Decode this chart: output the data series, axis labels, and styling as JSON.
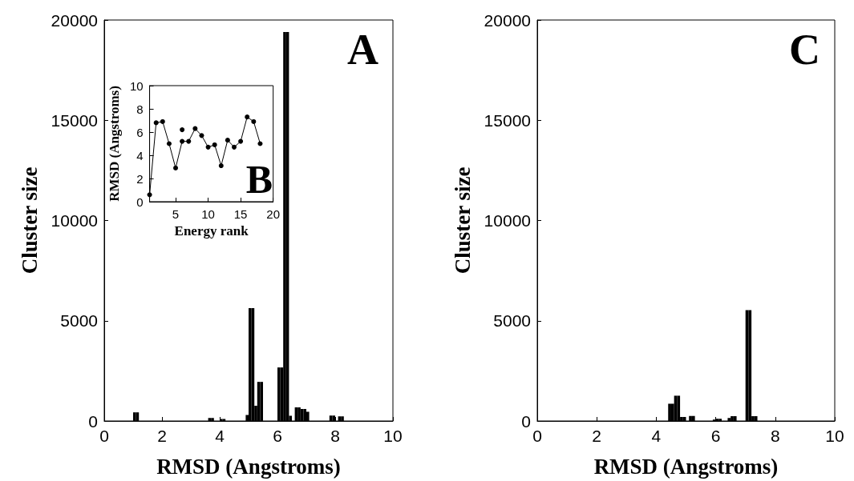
{
  "chart_data": [
    {
      "type": "bar",
      "xlabel": "RMSD (Angstroms)",
      "ylabel": "Cluster size",
      "annotations": [
        "A"
      ],
      "color": "#000000",
      "x": [
        1.05,
        1.15,
        3.65,
        3.75,
        4.05,
        4.15,
        4.95,
        5.05,
        5.15,
        5.25,
        5.35,
        5.45,
        6.05,
        6.15,
        6.25,
        6.35,
        6.45,
        6.65,
        6.75,
        6.85,
        6.95,
        7.05,
        7.85,
        7.95,
        8.15,
        8.25
      ],
      "values": [
        430,
        430,
        150,
        150,
        100,
        100,
        300,
        5630,
        5630,
        760,
        1950,
        1950,
        2670,
        2670,
        19400,
        19400,
        260,
        680,
        680,
        600,
        600,
        460,
        270,
        270,
        230,
        230
      ],
      "xlim": [
        0,
        10
      ],
      "xticks": [
        0,
        2,
        4,
        6,
        8,
        10
      ],
      "ylim": [
        0,
        20000
      ],
      "yticks": [
        0,
        5000,
        10000,
        15000,
        20000
      ],
      "grid": false
    },
    {
      "type": "line",
      "xlabel": "Energy rank",
      "ylabel": "RMSD (Angstroms)",
      "annotations": [
        "B"
      ],
      "marker": "circle",
      "line_style": "solid",
      "series": [
        {
          "color": "#000000",
          "x": [
            1,
            2,
            3,
            4,
            5,
            6,
            7,
            8,
            9,
            10,
            11,
            12,
            13,
            14,
            15,
            16,
            17,
            18
          ],
          "values": [
            0.6,
            6.8,
            6.9,
            5.0,
            2.9,
            5.2,
            5.2,
            6.3,
            5.7,
            4.7,
            4.9,
            3.1,
            5.3,
            4.7,
            5.2,
            7.3,
            6.9,
            5.0
          ]
        },
        {
          "color": "#000000",
          "x": [
            6
          ],
          "values": [
            6.2
          ]
        }
      ],
      "xlim": [
        1,
        20
      ],
      "xticks": [
        5,
        10,
        15,
        20
      ],
      "ylim": [
        0,
        10
      ],
      "yticks": [
        0,
        2,
        4,
        6,
        8,
        10
      ],
      "grid": false
    },
    {
      "type": "bar",
      "xlabel": "RMSD (Angstroms)",
      "ylabel": "Cluster size",
      "annotations": [
        "C"
      ],
      "color": "#000000",
      "x": [
        4.45,
        4.55,
        4.65,
        4.75,
        4.85,
        4.95,
        5.15,
        5.25,
        5.95,
        6.05,
        6.15,
        6.45,
        6.55,
        6.65,
        7.05,
        7.15,
        7.25,
        7.35
      ],
      "values": [
        860,
        860,
        1260,
        1260,
        200,
        200,
        250,
        250,
        70,
        110,
        110,
        150,
        240,
        240,
        5530,
        5530,
        240,
        240
      ],
      "xlim": [
        0,
        10
      ],
      "xticks": [
        0,
        2,
        4,
        6,
        8,
        10
      ],
      "ylim": [
        0,
        20000
      ],
      "yticks": [
        0,
        5000,
        10000,
        15000,
        20000
      ],
      "grid": false
    }
  ]
}
